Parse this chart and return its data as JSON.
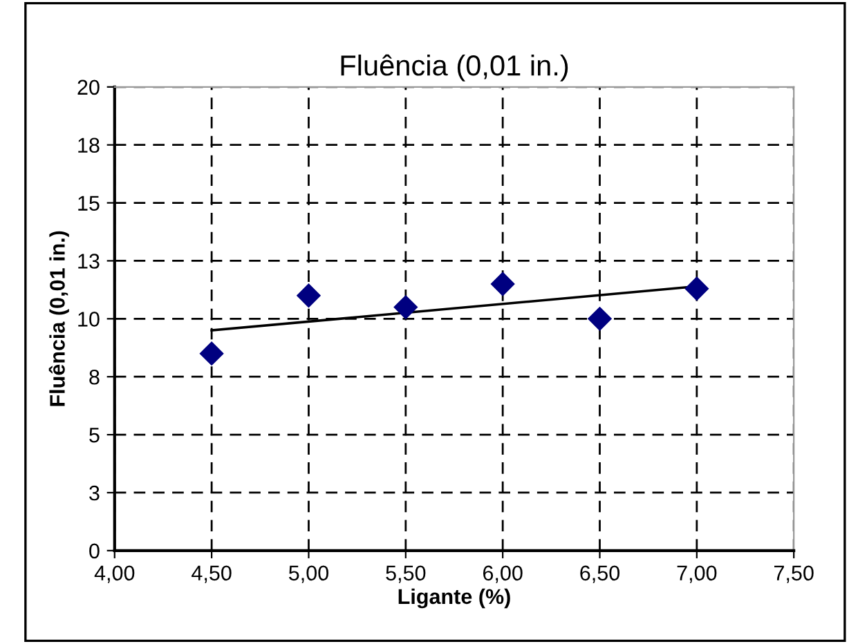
{
  "chart_data": {
    "type": "scatter",
    "title": "Fluência (0,01 in.)",
    "xlabel": "Ligante (%)",
    "ylabel": "Fluência (0,01 in.)",
    "series": [
      {
        "color": "#000080",
        "x": [
          4.5,
          5.0,
          5.5,
          6.0,
          6.5,
          7.0
        ],
        "values": [
          8.5,
          11.0,
          10.5,
          11.5,
          10.0,
          11.3
        ],
        "marker": "diamond"
      },
      {
        "type": "line",
        "color": "#000000",
        "x": [
          4.5,
          7.0
        ],
        "values": [
          9.5,
          11.4
        ],
        "marker": "none",
        "line_style": "solid"
      }
    ],
    "xlim": [
      4.0,
      7.5
    ],
    "xticks": [
      {
        "value": 4.0,
        "label": "4,00"
      },
      {
        "value": 4.5,
        "label": "4,50"
      },
      {
        "value": 5.0,
        "label": "5,00"
      },
      {
        "value": 5.5,
        "label": "5,50"
      },
      {
        "value": 6.0,
        "label": "6,00"
      },
      {
        "value": 6.5,
        "label": "6,50"
      },
      {
        "value": 7.0,
        "label": "7,00"
      },
      {
        "value": 7.5,
        "label": "7,50"
      }
    ],
    "ylim": [
      0,
      20
    ],
    "yticks": [
      0,
      {
        "value": 2.5,
        "label": "3"
      },
      5,
      {
        "value": 7.5,
        "label": "8"
      },
      10,
      {
        "value": 12.5,
        "label": "13"
      },
      15,
      {
        "value": 17.5,
        "label": "18"
      },
      20
    ],
    "grid": true,
    "legend": false
  }
}
